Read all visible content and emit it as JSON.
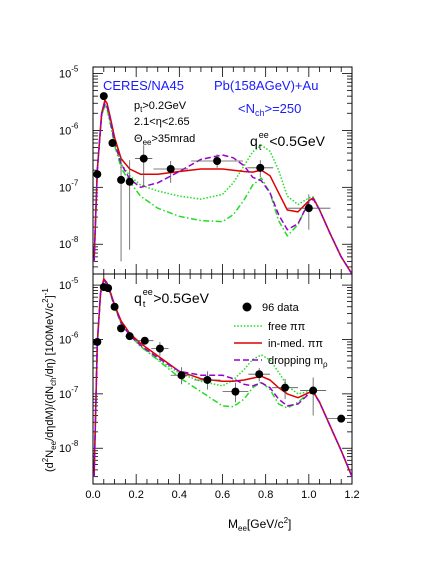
{
  "chart_data": [
    {
      "type": "line",
      "panel": "top",
      "yscale": "log",
      "ylim": [
        3e-09,
        1.3e-05
      ],
      "xlim": [
        0,
        1.2
      ],
      "yticks": [
        "10^{-8}",
        "10^{-7}",
        "10^{-6}",
        "10^{-5}"
      ],
      "annotations": {
        "experiment": "CERES/NA45",
        "system": "Pb(158AGeV)+Au",
        "nch": "<N",
        "nch_sub": "ch",
        "nch_val": ">=250",
        "cut1": "p",
        "cut1_sub": "t",
        "cut1_val": ">0.2GeV",
        "cut2": "2.1<η<2.65",
        "cut3_sym": "Θ",
        "cut3_sub": "ee",
        "cut3_val": ">35mrad",
        "qt_q": "q",
        "qt_sub": "t",
        "qt_sup": "ee",
        "qt_val": "<0.5GeV"
      },
      "data_points": [
        {
          "x": 0.02,
          "y": 1.7e-07,
          "xerr": 0,
          "ylo": 1.7e-07,
          "yhi": 1.7e-07
        },
        {
          "x": 0.05,
          "y": 4e-06,
          "xerr": 0,
          "ylo": 4e-06,
          "yhi": 4e-06
        },
        {
          "x": 0.09,
          "y": 6e-07,
          "xerr": 0,
          "ylo": 6e-07,
          "yhi": 6e-07
        },
        {
          "x": 0.13,
          "y": 1.35e-07,
          "xerr": 0.01,
          "ylo": 5e-09,
          "yhi": 3.5e-07
        },
        {
          "x": 0.17,
          "y": 1.25e-07,
          "xerr": 0.01,
          "ylo": 8e-09,
          "yhi": 3e-07
        },
        {
          "x": 0.235,
          "y": 3.2e-07,
          "xerr": 0.04,
          "ylo": 1e-07,
          "yhi": 5.5e-07
        },
        {
          "x": 0.36,
          "y": 2.1e-07,
          "xerr": 0.08,
          "ylo": 1.2e-07,
          "yhi": 2.9e-07
        },
        {
          "x": 0.575,
          "y": 2.9e-07,
          "xerr": 0.12,
          "ylo": 2.2e-07,
          "yhi": 3.8e-07
        },
        {
          "x": 0.775,
          "y": 2.2e-07,
          "xerr": 0.06,
          "ylo": 1.5e-07,
          "yhi": 3e-07
        },
        {
          "x": 1.0,
          "y": 4.3e-08,
          "xerr": 0.1,
          "ylo": 1.8e-08,
          "yhi": 7.5e-08
        }
      ],
      "series": [
        {
          "name": "free ππ",
          "color": "#22dd22",
          "dash": "dotted",
          "x": [
            0.005,
            0.02,
            0.04,
            0.055,
            0.065,
            0.08,
            0.1,
            0.13,
            0.17,
            0.22,
            0.3,
            0.4,
            0.5,
            0.6,
            0.65,
            0.7,
            0.74,
            0.78,
            0.82,
            0.86,
            0.9,
            0.95,
            1.0,
            1.02,
            1.05,
            1.1,
            1.15,
            1.2
          ],
          "y": [
            5e-09,
            2e-07,
            1.8e-06,
            2.9e-06,
            2.5e-06,
            1.4e-06,
            6e-07,
            2.6e-07,
            1.6e-07,
            1.1e-07,
            8.6e-08,
            7e-08,
            6.2e-08,
            7.5e-08,
            1.2e-07,
            2.4e-07,
            4.2e-07,
            5.5e-07,
            4.3e-07,
            2e-07,
            7e-08,
            5e-08,
            6.5e-08,
            6.8e-08,
            4e-08,
            1.5e-08,
            6e-09,
            3e-09
          ]
        },
        {
          "name": "",
          "color": "#22dd22",
          "dash": "dashdot",
          "x": [
            0.005,
            0.02,
            0.04,
            0.055,
            0.065,
            0.08,
            0.1,
            0.13,
            0.17,
            0.22,
            0.3,
            0.4,
            0.5,
            0.6,
            0.65,
            0.7,
            0.74,
            0.78,
            0.82,
            0.86,
            0.9,
            0.95,
            1.0,
            1.02,
            1.05,
            1.1,
            1.15,
            1.2
          ],
          "y": [
            5e-09,
            2e-07,
            1.8e-06,
            2.8e-06,
            2.4e-06,
            1.3e-06,
            5.5e-07,
            2.2e-07,
            1.25e-07,
            7e-08,
            4.3e-08,
            3.1e-08,
            2.6e-08,
            2.5e-08,
            3.3e-08,
            6e-08,
            1.1e-07,
            1.45e-07,
            8e-08,
            2.6e-08,
            1.4e-08,
            2.2e-08,
            5.8e-08,
            6.5e-08,
            4e-08,
            1.5e-08,
            6e-09,
            3e-09
          ]
        },
        {
          "name": "in-med. ππ",
          "color": "#e00000",
          "dash": "solid",
          "x": [
            0.005,
            0.02,
            0.04,
            0.055,
            0.065,
            0.08,
            0.1,
            0.13,
            0.17,
            0.22,
            0.3,
            0.4,
            0.5,
            0.6,
            0.65,
            0.7,
            0.74,
            0.78,
            0.82,
            0.86,
            0.9,
            0.95,
            1.0,
            1.02,
            1.05,
            1.1,
            1.15,
            1.2
          ],
          "y": [
            5e-09,
            2e-07,
            2e-06,
            3.4e-06,
            3e-06,
            1.7e-06,
            7.5e-07,
            3.2e-07,
            2.1e-07,
            1.7e-07,
            1.7e-07,
            1.9e-07,
            2.1e-07,
            2.1e-07,
            2e-07,
            1.9e-07,
            1.85e-07,
            2e-07,
            1.6e-07,
            8e-08,
            4e-08,
            3.7e-08,
            5.8e-08,
            6.5e-08,
            4e-08,
            1.5e-08,
            6e-09,
            3e-09
          ]
        },
        {
          "name": "dropping m",
          "name_sub": "ρ",
          "color": "#9900cc",
          "dash": "dashed",
          "x": [
            0.005,
            0.02,
            0.04,
            0.055,
            0.065,
            0.08,
            0.1,
            0.13,
            0.17,
            0.22,
            0.3,
            0.4,
            0.5,
            0.6,
            0.65,
            0.7,
            0.74,
            0.78,
            0.82,
            0.86,
            0.9,
            0.95,
            1.0,
            1.02,
            1.05,
            1.1,
            1.15,
            1.2
          ],
          "y": [
            5e-09,
            2e-07,
            1.9e-06,
            3e-06,
            2.7e-06,
            1.5e-06,
            6.3e-07,
            2.6e-07,
            1.4e-07,
            1e-07,
            1.2e-07,
            1.9e-07,
            3.1e-07,
            3.7e-07,
            3.3e-07,
            2.4e-07,
            1.5e-07,
            1.3e-07,
            8e-08,
            3.3e-08,
            1.8e-08,
            2.3e-08,
            5.5e-08,
            6.2e-08,
            4e-08,
            1.5e-08,
            6e-09,
            3e-09
          ]
        }
      ]
    },
    {
      "type": "line",
      "panel": "bottom",
      "yscale": "log",
      "ylim": [
        2.2e-09,
        1.6e-05
      ],
      "xlim": [
        0,
        1.2
      ],
      "yticks": [
        "10^{-8}",
        "10^{-7}",
        "10^{-6}",
        "10^{-5}"
      ],
      "xticks": [
        "0.0",
        "0.2",
        "0.4",
        "0.6",
        "0.8",
        "1.0",
        "1.2"
      ],
      "xlabel": "M",
      "xlabel_sub": "ee",
      "xlabel_unit": "[GeV/c",
      "xlabel_sup": "2",
      "xlabel_end": "]",
      "annotations": {
        "qt_q": "q",
        "qt_sub": "t",
        "qt_sup": "ee",
        "qt_val": ">0.5GeV"
      },
      "legend": {
        "placement": "top-right",
        "data_label": "96 data"
      },
      "data_points": [
        {
          "x": 0.02,
          "y": 9e-07,
          "xerr": 0,
          "ylo": 9e-07,
          "yhi": 9e-07
        },
        {
          "x": 0.05,
          "y": 9.2e-06,
          "xerr": 0,
          "ylo": 9.2e-06,
          "yhi": 9.2e-06
        },
        {
          "x": 0.07,
          "y": 8.8e-06,
          "xerr": 0,
          "ylo": 8.8e-06,
          "yhi": 8.8e-06
        },
        {
          "x": 0.1,
          "y": 4e-06,
          "xerr": 0,
          "ylo": 4e-06,
          "yhi": 4e-06
        },
        {
          "x": 0.13,
          "y": 1.6e-06,
          "xerr": 0,
          "ylo": 1.6e-06,
          "yhi": 1.6e-06
        },
        {
          "x": 0.17,
          "y": 1.15e-06,
          "xerr": 0.02,
          "ylo": 1.15e-06,
          "yhi": 1.15e-06
        },
        {
          "x": 0.24,
          "y": 9.5e-07,
          "xerr": 0.04,
          "ylo": 9.5e-07,
          "yhi": 9.5e-07
        },
        {
          "x": 0.31,
          "y": 6.8e-07,
          "xerr": 0.04,
          "ylo": 5e-07,
          "yhi": 9e-07
        },
        {
          "x": 0.41,
          "y": 2.2e-07,
          "xerr": 0.05,
          "ylo": 1.5e-07,
          "yhi": 3.1e-07
        },
        {
          "x": 0.53,
          "y": 1.8e-07,
          "xerr": 0.06,
          "ylo": 1.2e-07,
          "yhi": 2.6e-07
        },
        {
          "x": 0.66,
          "y": 1.1e-07,
          "xerr": 0.06,
          "ylo": 7e-08,
          "yhi": 1.6e-07
        },
        {
          "x": 0.77,
          "y": 2.3e-07,
          "xerr": 0.05,
          "ylo": 1.7e-07,
          "yhi": 3e-07
        },
        {
          "x": 0.89,
          "y": 1.3e-07,
          "xerr": 0.06,
          "ylo": 8e-08,
          "yhi": 1.9e-07
        },
        {
          "x": 1.02,
          "y": 1.15e-07,
          "xerr": 0.06,
          "ylo": 4e-08,
          "yhi": 2e-07
        },
        {
          "x": 1.15,
          "y": 3.5e-08,
          "xerr": 0.07,
          "ylo": 3.5e-08,
          "yhi": 3.5e-08
        }
      ],
      "series": [
        {
          "name": "free ππ",
          "color": "#22dd22",
          "dash": "dotted",
          "x": [
            0.005,
            0.02,
            0.035,
            0.05,
            0.065,
            0.08,
            0.1,
            0.13,
            0.17,
            0.22,
            0.3,
            0.4,
            0.5,
            0.6,
            0.65,
            0.7,
            0.74,
            0.78,
            0.82,
            0.86,
            0.9,
            0.95,
            1.0,
            1.02,
            1.05,
            1.1,
            1.15,
            1.2
          ],
          "y": [
            3e-09,
            8e-07,
            7e-06,
            1.2e-05,
            1.05e-05,
            7e-06,
            4e-06,
            2e-06,
            1.2e-06,
            7.5e-07,
            4.3e-07,
            2.4e-07,
            1.7e-07,
            1.4e-07,
            1.8e-07,
            2.8e-07,
            4.3e-07,
            5.2e-07,
            4.2e-07,
            2.5e-07,
            1.4e-07,
            1e-07,
            1.1e-07,
            1.1e-07,
            7e-08,
            2.5e-08,
            9e-09,
            3e-09
          ]
        },
        {
          "name": "",
          "color": "#22dd22",
          "dash": "dashdot",
          "x": [
            0.005,
            0.02,
            0.035,
            0.05,
            0.065,
            0.08,
            0.1,
            0.13,
            0.17,
            0.22,
            0.3,
            0.4,
            0.5,
            0.6,
            0.65,
            0.7,
            0.74,
            0.78,
            0.82,
            0.86,
            0.9,
            0.95,
            1.0,
            1.02,
            1.05,
            1.1,
            1.15,
            1.2
          ],
          "y": [
            3e-09,
            8e-07,
            7e-06,
            1.2e-05,
            1.05e-05,
            7e-06,
            4e-06,
            2e-06,
            1.2e-06,
            7.5e-07,
            4.2e-07,
            2e-07,
            1.1e-07,
            6e-08,
            5.8e-08,
            8e-08,
            1.3e-07,
            1.65e-07,
            1.2e-07,
            6.5e-08,
            5.5e-08,
            7e-08,
            1.05e-07,
            1.1e-07,
            7e-08,
            2.5e-08,
            9e-09,
            3e-09
          ]
        },
        {
          "name": "in-med. ππ",
          "color": "#e00000",
          "dash": "solid",
          "x": [
            0.005,
            0.02,
            0.035,
            0.05,
            0.065,
            0.08,
            0.1,
            0.13,
            0.17,
            0.22,
            0.3,
            0.4,
            0.5,
            0.6,
            0.65,
            0.7,
            0.74,
            0.78,
            0.82,
            0.86,
            0.9,
            0.95,
            1.0,
            1.02,
            1.05,
            1.1,
            1.15,
            1.2
          ],
          "y": [
            3e-09,
            9e-07,
            7.5e-06,
            1.3e-05,
            1.1e-05,
            7.5e-06,
            4.3e-06,
            2.2e-06,
            1.3e-06,
            8.5e-07,
            5e-07,
            2.6e-07,
            1.9e-07,
            1.7e-07,
            1.7e-07,
            1.8e-07,
            1.95e-07,
            2.1e-07,
            1.8e-07,
            1.3e-07,
            1e-07,
            8.5e-08,
            1.05e-07,
            1.1e-07,
            7e-08,
            2.5e-08,
            9e-09,
            3e-09
          ]
        },
        {
          "name": "dropping m",
          "name_sub": "ρ",
          "color": "#9900cc",
          "dash": "dashed",
          "x": [
            0.005,
            0.02,
            0.035,
            0.05,
            0.065,
            0.08,
            0.1,
            0.13,
            0.17,
            0.22,
            0.3,
            0.4,
            0.5,
            0.6,
            0.65,
            0.7,
            0.74,
            0.78,
            0.82,
            0.86,
            0.9,
            0.95,
            1.0,
            1.02,
            1.05,
            1.1,
            1.15,
            1.2
          ],
          "y": [
            3e-09,
            8.5e-07,
            7.2e-06,
            1.25e-05,
            1.07e-05,
            7.2e-06,
            4.1e-06,
            2e-06,
            1.2e-06,
            7.8e-07,
            4.6e-07,
            2.6e-07,
            2.2e-07,
            2.2e-07,
            1.9e-07,
            1.5e-07,
            1.4e-07,
            1.6e-07,
            1.3e-07,
            8e-08,
            6e-08,
            6.5e-08,
            1e-07,
            1.05e-07,
            7e-08,
            2.5e-08,
            9e-09,
            3e-09
          ]
        }
      ]
    }
  ],
  "ylabel": "(d²N_ee/dηdM)/(dN_ch/dη) [100MeV/c²]⁻¹",
  "ylabel_parts": {
    "p1": "(d",
    "p1_sup": "2",
    "p2": "N",
    "p2_sub": "ee",
    "p3": "/dηdM)/(dN",
    "p3_sub": "ch",
    "p4": "/dη) [100MeV/c",
    "p4_sup": "2",
    "p5": "]",
    "p5_sup": "-1"
  },
  "legend": {
    "data_label": "96 data",
    "free": "free ππ",
    "inmed": "in-med. ππ",
    "dropping": "dropping m",
    "dropping_sub": "ρ"
  }
}
